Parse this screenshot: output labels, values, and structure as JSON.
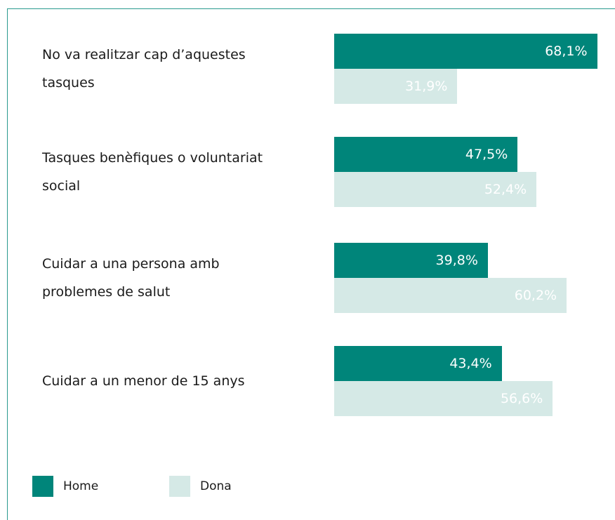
{
  "chart_data": {
    "type": "bar",
    "orientation": "horizontal",
    "categories": [
      "No va realitzar cap d’aquestes tasques",
      "Tasques benèfiques o voluntariat social",
      "Cuidar a una persona amb problemes de salut",
      "Cuidar a un menor de 15 anys"
    ],
    "series": [
      {
        "name": "Home",
        "color": "#00857a",
        "label_color": "#ffffff",
        "values": [
          68.1,
          47.5,
          39.8,
          43.4
        ],
        "value_labels": [
          "68,1%",
          "47,5%",
          "39,8%",
          "43,4%"
        ]
      },
      {
        "name": "Dona",
        "color": "#d5e9e6",
        "label_color": "#ffffff",
        "values": [
          31.9,
          52.4,
          60.2,
          56.6
        ],
        "value_labels": [
          "31,9%",
          "52,4%",
          "60,2%",
          "56,6%"
        ]
      }
    ]
  }
}
